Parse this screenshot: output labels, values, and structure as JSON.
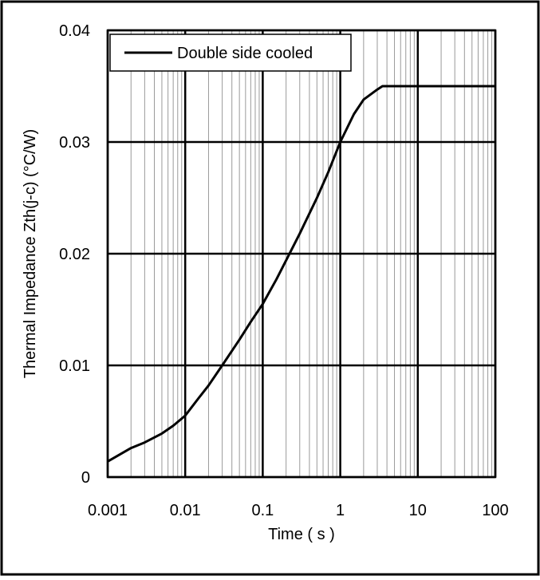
{
  "chart_data": {
    "type": "line",
    "title": "",
    "xlabel": "Time ( s )",
    "ylabel": "Thermal Impedance  Zth(j-c)  (°C/W)",
    "x_scale": "log",
    "xlim": [
      0.001,
      100
    ],
    "ylim": [
      0,
      0.04
    ],
    "x_ticks": [
      "0.001",
      "0.01",
      "0.1",
      "1",
      "10",
      "100"
    ],
    "y_ticks": [
      "0",
      "0.01",
      "0.02",
      "0.03",
      "0.04"
    ],
    "grid": true,
    "legend_position": "top-left",
    "series": [
      {
        "name": "Double side cooled",
        "color": "#000000",
        "x": [
          0.001,
          0.0015,
          0.002,
          0.003,
          0.005,
          0.007,
          0.01,
          0.015,
          0.02,
          0.03,
          0.05,
          0.07,
          0.1,
          0.15,
          0.2,
          0.3,
          0.5,
          0.7,
          1,
          1.5,
          2,
          3,
          3.5,
          4,
          5,
          10,
          20,
          50,
          100
        ],
        "y": [
          0.0014,
          0.0021,
          0.0026,
          0.0031,
          0.0039,
          0.0046,
          0.0055,
          0.0071,
          0.0082,
          0.01,
          0.0123,
          0.0139,
          0.0155,
          0.0177,
          0.0194,
          0.0218,
          0.025,
          0.0273,
          0.03,
          0.0325,
          0.0338,
          0.0347,
          0.035,
          0.035,
          0.035,
          0.035,
          0.035,
          0.035,
          0.035
        ]
      }
    ]
  }
}
